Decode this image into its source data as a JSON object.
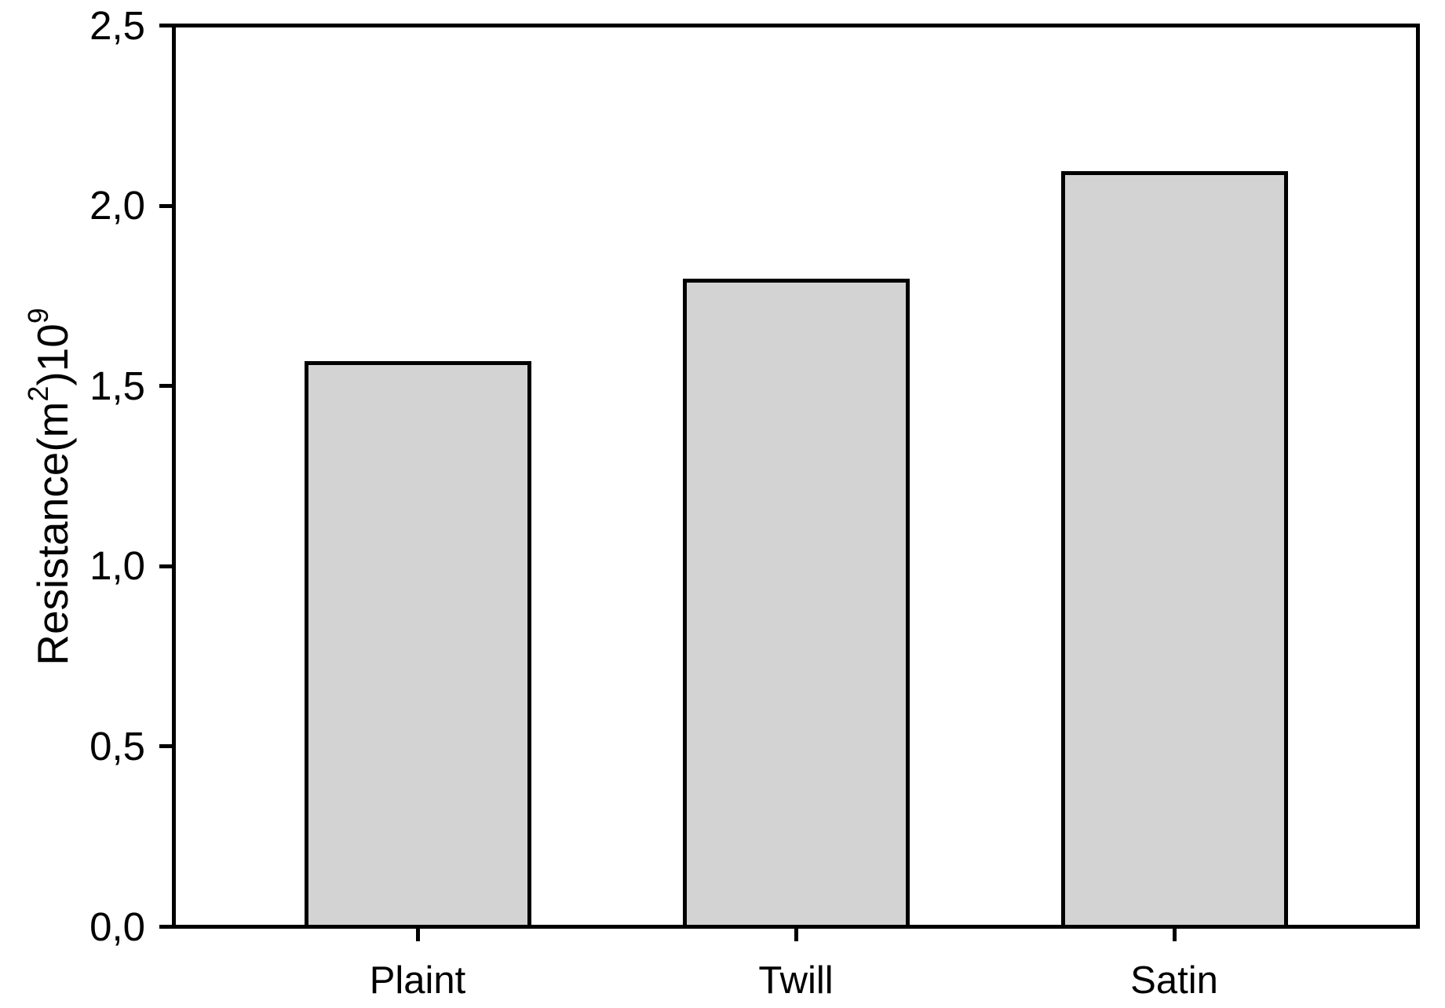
{
  "chart_data": {
    "type": "bar",
    "categories": [
      "Plaint",
      "Twill",
      "Satin"
    ],
    "values": [
      1.57,
      1.8,
      2.1
    ],
    "ylabel": "Resistance(m2)10^9",
    "ylabel_parts": [
      {
        "text": "Resistance(m",
        "sup": false
      },
      {
        "text": "2",
        "sup": true
      },
      {
        "text": ")10",
        "sup": false
      },
      {
        "text": "9",
        "sup": true
      }
    ],
    "y_tick_labels": [
      "0,0",
      "0,5",
      "1,0",
      "1,5",
      "2,0",
      "2,5"
    ],
    "y_tick_values": [
      0,
      0.5,
      1,
      1.5,
      2,
      2.5
    ],
    "ylim": [
      0,
      2.5
    ],
    "decimal_separator": ",",
    "grid": false,
    "legend": false,
    "bar_fill_color": "#d3d3d3",
    "bar_border_color": "#000000",
    "axis_color": "#000000",
    "text_color": "#000000",
    "background_color": "#ffffff"
  }
}
